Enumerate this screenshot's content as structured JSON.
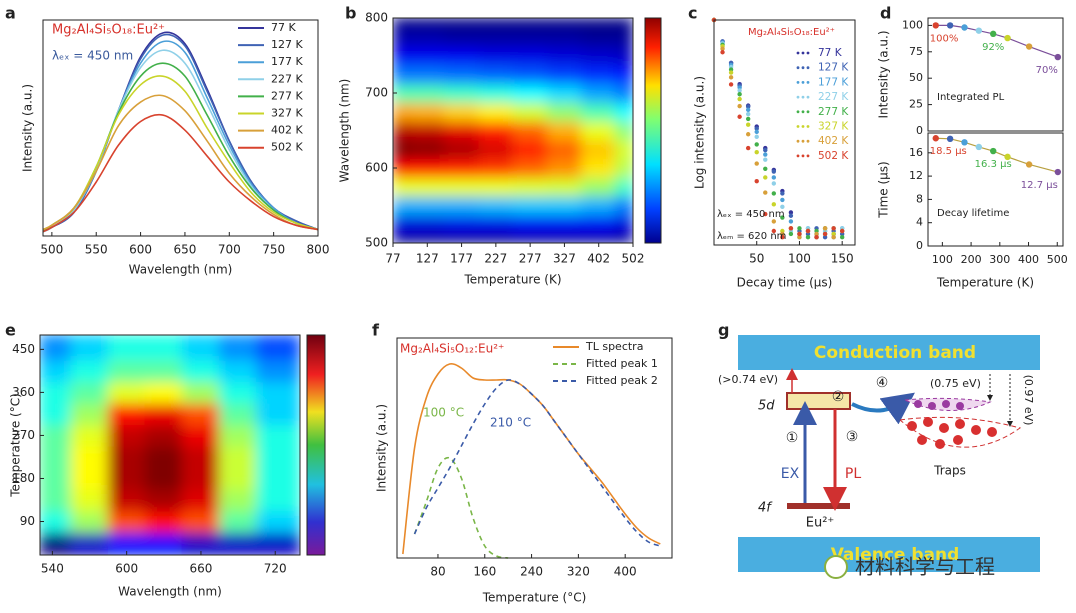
{
  "chart_data": [
    {
      "type": "line",
      "panel_label": "a",
      "title": "Mg₂Al₄Si₅O₁₈:Eu²⁺",
      "annotations": [
        "λₑₓ = 450 nm"
      ],
      "x_label": "Wavelength (nm)",
      "y_label": "Intensity (a.u.)",
      "smooth": true,
      "legend": "upper right",
      "x": [
        490,
        500,
        525,
        550,
        575,
        600,
        625,
        650,
        675,
        700,
        725,
        750,
        775,
        800
      ],
      "xlim": [
        490,
        800
      ],
      "xticks": [
        500,
        550,
        600,
        650,
        700,
        750,
        800
      ],
      "ylim": [
        0,
        1
      ],
      "series": [
        {
          "name": "77 K",
          "color": "#35349b",
          "values": [
            0.02,
            0.04,
            0.11,
            0.3,
            0.58,
            0.83,
            0.94,
            0.89,
            0.68,
            0.44,
            0.25,
            0.13,
            0.07,
            0.03
          ]
        },
        {
          "name": "127 K",
          "color": "#3f63b4",
          "values": [
            0.02,
            0.04,
            0.11,
            0.3,
            0.58,
            0.82,
            0.93,
            0.88,
            0.67,
            0.44,
            0.25,
            0.13,
            0.07,
            0.03
          ]
        },
        {
          "name": "177 K",
          "color": "#4b9fd8",
          "values": [
            0.02,
            0.04,
            0.12,
            0.3,
            0.58,
            0.8,
            0.9,
            0.85,
            0.64,
            0.42,
            0.24,
            0.13,
            0.06,
            0.03
          ]
        },
        {
          "name": "227 K",
          "color": "#8fd0e8",
          "values": [
            0.02,
            0.04,
            0.12,
            0.31,
            0.58,
            0.78,
            0.86,
            0.8,
            0.61,
            0.4,
            0.23,
            0.12,
            0.06,
            0.03
          ]
        },
        {
          "name": "277 K",
          "color": "#42b04a",
          "values": [
            0.02,
            0.05,
            0.13,
            0.32,
            0.57,
            0.74,
            0.8,
            0.74,
            0.56,
            0.37,
            0.22,
            0.12,
            0.06,
            0.03
          ]
        },
        {
          "name": "327 K",
          "color": "#c9d42a",
          "values": [
            0.03,
            0.05,
            0.13,
            0.32,
            0.56,
            0.7,
            0.74,
            0.67,
            0.5,
            0.34,
            0.2,
            0.11,
            0.06,
            0.03
          ]
        },
        {
          "name": "402 K",
          "color": "#d8a03a",
          "values": [
            0.03,
            0.05,
            0.13,
            0.3,
            0.51,
            0.62,
            0.65,
            0.58,
            0.44,
            0.29,
            0.18,
            0.1,
            0.05,
            0.03
          ]
        },
        {
          "name": "502 K",
          "color": "#d8432e",
          "values": [
            0.02,
            0.04,
            0.11,
            0.25,
            0.42,
            0.53,
            0.56,
            0.49,
            0.37,
            0.25,
            0.16,
            0.09,
            0.05,
            0.03
          ]
        }
      ]
    },
    {
      "type": "heatmap",
      "panel_label": "b",
      "x_label": "Temperature (K)",
      "y_label": "Wavelength (nm)",
      "categories": [
        77,
        127,
        177,
        227,
        277,
        327,
        402,
        502
      ],
      "y": [
        500,
        525,
        550,
        575,
        600,
        625,
        650,
        675,
        700,
        725,
        750,
        775,
        800
      ],
      "ylim": [
        500,
        800
      ],
      "yticks": [
        500,
        600,
        700,
        800
      ],
      "z": [
        [
          0.04,
          0.11,
          0.3,
          0.58,
          0.83,
          0.94,
          0.89,
          0.68,
          0.44,
          0.25,
          0.13,
          0.07,
          0.03
        ],
        [
          0.04,
          0.11,
          0.3,
          0.58,
          0.82,
          0.93,
          0.88,
          0.67,
          0.44,
          0.25,
          0.13,
          0.07,
          0.03
        ],
        [
          0.04,
          0.12,
          0.3,
          0.58,
          0.8,
          0.9,
          0.85,
          0.64,
          0.42,
          0.24,
          0.13,
          0.06,
          0.03
        ],
        [
          0.04,
          0.12,
          0.31,
          0.58,
          0.78,
          0.86,
          0.8,
          0.61,
          0.4,
          0.23,
          0.12,
          0.06,
          0.03
        ],
        [
          0.05,
          0.13,
          0.32,
          0.57,
          0.74,
          0.8,
          0.74,
          0.56,
          0.37,
          0.22,
          0.12,
          0.06,
          0.03
        ],
        [
          0.05,
          0.13,
          0.32,
          0.56,
          0.7,
          0.74,
          0.67,
          0.5,
          0.34,
          0.2,
          0.11,
          0.06,
          0.03
        ],
        [
          0.05,
          0.13,
          0.3,
          0.51,
          0.62,
          0.65,
          0.58,
          0.44,
          0.29,
          0.18,
          0.1,
          0.05,
          0.03
        ],
        [
          0.04,
          0.11,
          0.25,
          0.42,
          0.53,
          0.56,
          0.49,
          0.37,
          0.25,
          0.16,
          0.09,
          0.05,
          0.03
        ]
      ]
    },
    {
      "type": "scatter",
      "panel_label": "c",
      "title": "Mg₂Al₄Si₅O₁₈:Eu²⁺",
      "annotations": [
        "λₑₓ = 450 nm",
        "λₑₘ = 620 nm"
      ],
      "x_label": "Decay time (μs)",
      "y_label": "Log intensity (a.u.)",
      "log_scale": true,
      "legend": "upper right",
      "x": [
        0,
        10,
        20,
        30,
        40,
        50,
        60,
        70,
        80,
        90,
        100,
        110,
        120,
        130,
        140,
        150
      ],
      "xlim": [
        0,
        165
      ],
      "xticks": [
        50,
        100,
        150
      ],
      "ylim": [
        0.0007,
        1
      ],
      "series": [
        {
          "name": "77 K",
          "color": "#35349b",
          "values": [
            1,
            0.5,
            0.25,
            0.126,
            0.063,
            0.032,
            0.016,
            0.0079,
            0.004,
            0.002,
            0.001,
            0.0011,
            0.0009,
            0.0012,
            0.001,
            0.0011
          ]
        },
        {
          "name": "127 K",
          "color": "#3f63b4",
          "values": [
            1,
            0.5,
            0.25,
            0.12,
            0.061,
            0.03,
            0.015,
            0.0075,
            0.0037,
            0.0018,
            0.0011,
            0.001,
            0.0012,
            0.0009,
            0.0011,
            0.001
          ]
        },
        {
          "name": "177 K",
          "color": "#4b9fd8",
          "values": [
            1,
            0.484,
            0.234,
            0.113,
            0.055,
            0.027,
            0.013,
            0.0062,
            0.003,
            0.0015,
            0.0009,
            0.0012,
            0.001,
            0.0011,
            0.0009,
            0.0012
          ]
        },
        {
          "name": "227 K",
          "color": "#8fd0e8",
          "values": [
            1,
            0.469,
            0.22,
            0.103,
            0.048,
            0.023,
            0.011,
            0.0051,
            0.0024,
            0.0011,
            0.001,
            0.0012,
            0.0009,
            0.0011,
            0.001,
            0.0012
          ]
        },
        {
          "name": "277 K",
          "color": "#42b04a",
          "values": [
            1,
            0.449,
            0.202,
            0.091,
            0.041,
            0.018,
            0.0082,
            0.0037,
            0.0017,
            0.001,
            0.0012,
            0.0009,
            0.0011,
            0.001,
            0.0012,
            0.0009
          ]
        },
        {
          "name": "327 K",
          "color": "#c9d42a",
          "values": [
            1,
            0.428,
            0.183,
            0.078,
            0.034,
            0.014,
            0.0062,
            0.0026,
            0.0011,
            0.0012,
            0.001,
            0.0011,
            0.0009,
            0.0012,
            0.001,
            0.0011
          ]
        },
        {
          "name": "402 K",
          "color": "#d8a03a",
          "values": [
            1,
            0.396,
            0.157,
            0.062,
            0.025,
            0.0097,
            0.0038,
            0.0015,
            0.001,
            0.0012,
            0.0009,
            0.0011,
            0.001,
            0.0012,
            0.0009,
            0.0011
          ]
        },
        {
          "name": "502 K",
          "color": "#d8432e",
          "values": [
            1,
            0.353,
            0.125,
            0.044,
            0.016,
            0.0055,
            0.0019,
            0.0011,
            0.0009,
            0.0012,
            0.001,
            0.0011,
            0.0009,
            0.001,
            0.0012,
            0.0011
          ]
        }
      ]
    },
    {
      "type": "line",
      "panel_label": "d",
      "y_label": "Intensity (a.u.)",
      "annotations": [
        "Integrated PL"
      ],
      "x": [
        77,
        127,
        177,
        227,
        277,
        327,
        402,
        502
      ],
      "xlim": [
        50,
        520
      ],
      "ylim": [
        0,
        107
      ],
      "yticks": [
        0,
        25,
        50,
        75,
        100
      ],
      "color": "#7b4f9a",
      "marker_colors": [
        "#d8432e",
        "#3f63b4",
        "#4b9fd8",
        "#8fd0e8",
        "#42b04a",
        "#c9d42a",
        "#d8a03a",
        "#7b4f9a"
      ],
      "values": [
        100,
        100,
        98,
        95,
        92,
        88,
        80,
        70
      ],
      "value_labels": [
        "100%",
        null,
        null,
        null,
        "92%",
        null,
        null,
        "70%"
      ]
    },
    {
      "type": "line",
      "x_label": "Temperature (K)",
      "y_label": "Time (μs)",
      "annotations": [
        "Decay lifetime"
      ],
      "x": [
        77,
        127,
        177,
        227,
        277,
        327,
        402,
        502
      ],
      "xlim": [
        50,
        520
      ],
      "xticks": [
        100,
        200,
        300,
        400,
        500
      ],
      "ylim": [
        0,
        19.4
      ],
      "yticks": [
        0,
        4,
        8,
        12,
        16
      ],
      "color": "#b8a040",
      "marker_colors": [
        "#d8432e",
        "#3f63b4",
        "#4b9fd8",
        "#8fd0e8",
        "#42b04a",
        "#c9d42a",
        "#d8a03a",
        "#7b4f9a"
      ],
      "values": [
        18.5,
        18.4,
        17.8,
        17.0,
        16.3,
        15.3,
        14.0,
        12.7
      ],
      "value_labels": [
        "18.5 μs",
        null,
        null,
        null,
        "16.3 μs",
        null,
        null,
        "12.7 μs"
      ]
    },
    {
      "type": "heatmap",
      "panel_label": "e",
      "x_label": "Wavelength (nm)",
      "y_label": "Temperature (°C)",
      "x": [
        540,
        570,
        600,
        630,
        660,
        690,
        720
      ],
      "xlim": [
        530,
        740
      ],
      "xticks": [
        540,
        600,
        660,
        720
      ],
      "y": [
        45,
        90,
        135,
        180,
        225,
        270,
        315,
        360,
        405,
        450
      ],
      "ylim": [
        20,
        480
      ],
      "yticks": [
        90,
        180,
        270,
        360,
        450
      ],
      "z": [
        [
          0.25,
          0.55,
          0.6,
          0.6,
          0.6,
          0.6,
          0.55,
          0.55,
          0.5,
          0.45
        ],
        [
          0.3,
          0.65,
          0.7,
          0.72,
          0.72,
          0.7,
          0.65,
          0.6,
          0.55,
          0.5
        ],
        [
          0.35,
          0.85,
          0.95,
          0.97,
          0.97,
          0.95,
          0.9,
          0.7,
          0.6,
          0.55
        ],
        [
          0.35,
          0.9,
          0.97,
          1,
          1,
          0.97,
          0.92,
          0.72,
          0.6,
          0.55
        ],
        [
          0.3,
          0.85,
          0.93,
          0.95,
          0.95,
          0.92,
          0.85,
          0.65,
          0.55,
          0.5
        ],
        [
          0.3,
          0.6,
          0.65,
          0.68,
          0.68,
          0.65,
          0.6,
          0.55,
          0.5,
          0.45
        ],
        [
          0.3,
          0.5,
          0.55,
          0.55,
          0.55,
          0.55,
          0.5,
          0.5,
          0.45,
          0.4
        ]
      ]
    },
    {
      "type": "line",
      "panel_label": "f",
      "title": "Mg₂Al₄Si₅O₁₂:Eu²⁺",
      "annotations": [
        "100 °C",
        "210 °C"
      ],
      "x_label": "Temperature (°C)",
      "y_label": "Intensity (a.u.)",
      "smooth": true,
      "legend": "upper right",
      "x": [
        20,
        40,
        60,
        80,
        100,
        120,
        140,
        160,
        180,
        200,
        220,
        240,
        260,
        280,
        300,
        320,
        340,
        360,
        380,
        400,
        420,
        440,
        460
      ],
      "xlim": [
        10,
        480
      ],
      "xticks": [
        80,
        160,
        240,
        320,
        400
      ],
      "ylim": [
        0,
        1.1
      ],
      "series": [
        {
          "name": "TL spectra",
          "color": "#e8892a",
          "values": [
            0.02,
            0.55,
            0.8,
            0.92,
            0.97,
            0.95,
            0.9,
            0.89,
            0.89,
            0.89,
            0.87,
            0.82,
            0.76,
            0.68,
            0.6,
            0.52,
            0.45,
            0.38,
            0.3,
            0.22,
            0.15,
            0.1,
            0.07
          ]
        },
        {
          "name": "Fitted peak 1",
          "color": "#7ab648",
          "dashed": true,
          "values": [
            null,
            0.12,
            0.28,
            0.45,
            0.5,
            0.4,
            0.2,
            0.06,
            0.01,
            0.0,
            null,
            null,
            null,
            null,
            null,
            null,
            null,
            null,
            null,
            null,
            null,
            null,
            null
          ]
        },
        {
          "name": "Fitted peak 2",
          "color": "#3a5aa8",
          "dashed": true,
          "values": [
            null,
            0.12,
            0.25,
            0.35,
            0.45,
            0.56,
            0.67,
            0.77,
            0.85,
            0.89,
            0.87,
            0.82,
            0.76,
            0.68,
            0.6,
            0.52,
            0.44,
            0.36,
            0.28,
            0.2,
            0.13,
            0.08,
            0.06
          ]
        }
      ]
    }
  ],
  "diagram": {
    "panel_label": "g",
    "conduction_band": "Conduction band",
    "valence_band": "Valence band",
    "barrier": "(>0.74 eV)",
    "level_5d": "5d",
    "level_4f": "4f",
    "step_1": "①",
    "step_2": "②",
    "step_3": "③",
    "step_4": "④",
    "excitation": "EX",
    "emission": "PL",
    "ion": "Eu²⁺",
    "shallow_trap_depth": "(0.75 eV)",
    "deep_trap_depth": "(0.97 eV)",
    "traps": "Traps"
  },
  "watermark": "材料科学与工程"
}
